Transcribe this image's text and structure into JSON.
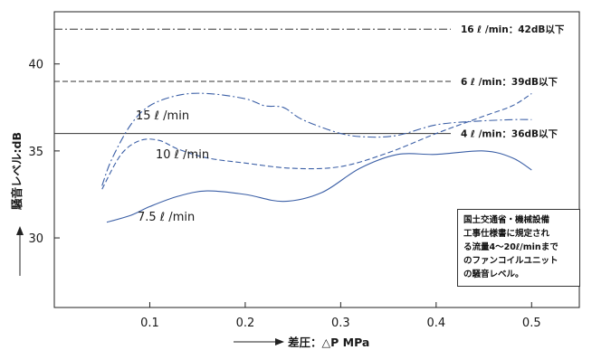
{
  "chart_data": {
    "type": "line",
    "xlabel": "差圧：△P MPa",
    "ylabel": "騒音レベル:dB",
    "xlim": [
      0,
      0.55
    ],
    "ylim": [
      26,
      43
    ],
    "x_ticks": [
      "0.1",
      "0.2",
      "0.3",
      "0.4",
      "0.5"
    ],
    "y_ticks": [
      "30",
      "35",
      "40"
    ],
    "grid": false,
    "series": [
      {
        "name": "15 ℓ /min",
        "style": "dashdot",
        "x": [
          0.05,
          0.06,
          0.08,
          0.1,
          0.13,
          0.16,
          0.2,
          0.22,
          0.24,
          0.26,
          0.3,
          0.33,
          0.36,
          0.4,
          0.44,
          0.48,
          0.5
        ],
        "y": [
          33.0,
          34.5,
          36.5,
          37.6,
          38.2,
          38.3,
          38.0,
          37.6,
          37.5,
          36.8,
          36.0,
          35.8,
          35.9,
          36.5,
          36.7,
          36.8,
          36.8
        ]
      },
      {
        "name": "10 ℓ /min",
        "style": "dashed",
        "x": [
          0.05,
          0.07,
          0.09,
          0.11,
          0.13,
          0.16,
          0.2,
          0.25,
          0.3,
          0.35,
          0.4,
          0.45,
          0.48,
          0.5
        ],
        "y": [
          32.8,
          34.8,
          35.6,
          35.6,
          35.1,
          34.6,
          34.3,
          34.0,
          34.1,
          34.9,
          36.0,
          37.0,
          37.6,
          38.3
        ]
      },
      {
        "name": "7.5 ℓ /min",
        "style": "solid",
        "x": [
          0.055,
          0.08,
          0.1,
          0.13,
          0.16,
          0.2,
          0.24,
          0.28,
          0.32,
          0.36,
          0.4,
          0.45,
          0.48,
          0.5
        ],
        "y": [
          30.9,
          31.3,
          31.8,
          32.4,
          32.7,
          32.5,
          32.1,
          32.6,
          34.0,
          34.8,
          34.8,
          35.0,
          34.6,
          33.9
        ]
      }
    ],
    "reference_lines": [
      {
        "y": 42,
        "label": "16 ℓ /min：42dB以下",
        "style": "dashdot"
      },
      {
        "y": 39,
        "label": "6 ℓ /min：39dB以下",
        "style": "dashed"
      },
      {
        "y": 36,
        "label": "4 ℓ /min：36dB以下",
        "style": "solid"
      }
    ],
    "annotation_lines": [
      "国土交通省・機械設備",
      "工事仕様書に規定され",
      "る流量4～20ℓ/minまで",
      "のファンコイルユニット",
      "の騒音レベル。"
    ]
  }
}
